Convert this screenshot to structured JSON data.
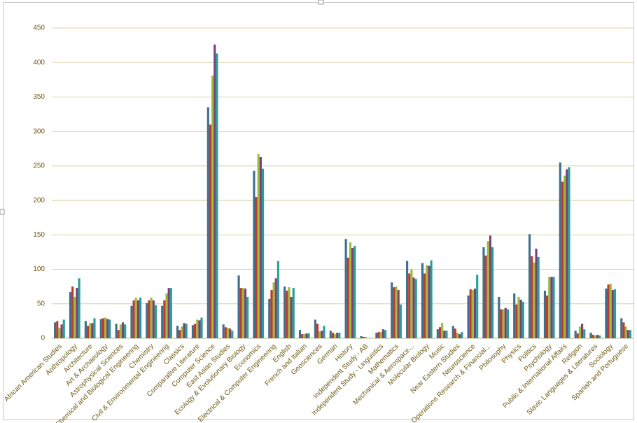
{
  "chart_data": {
    "type": "bar",
    "categories": [
      "African American Studies",
      "Anthropology",
      "Architecture",
      "Art & Archaeology",
      "Astrophysical Sciences",
      "Chemical and Biological Engineering",
      "Chemistry",
      "Civil & Environmental Engineering",
      "Classics",
      "Comparative Literature",
      "Computer Science",
      "East Asian Studies",
      "Ecology & Evolutionary Biology",
      "Economics",
      "Electrical & Computer Engineering",
      "English",
      "French and Italian",
      "Geosciences",
      "German",
      "History",
      "Independent Study - AB",
      "Independent Study - Linguistics",
      "Mathematics",
      "Mechanical & Aerospace...",
      "Molecular Biology",
      "Music",
      "Near Eastern Studies",
      "Neuroscience",
      "Operations Research & Financial...",
      "Philosophy",
      "Physics",
      "Politics",
      "Psychology",
      "Public & International Affairs",
      "Religion",
      "Slavic Languages & Literatures",
      "Sociology",
      "Spanish and Portuguese"
    ],
    "series": [
      {
        "color": "#3f6f8e",
        "values": [
          23,
          67,
          25,
          28,
          21,
          47,
          51,
          47,
          18,
          19,
          335,
          20,
          91,
          243,
          57,
          75,
          12,
          27,
          11,
          144,
          3,
          8,
          81,
          112,
          109,
          13,
          18,
          62,
          132,
          60,
          65,
          151,
          69,
          255,
          11,
          8,
          72,
          29
        ]
      },
      {
        "color": "#c0392b",
        "values": [
          25,
          75,
          18,
          29,
          12,
          55,
          55,
          55,
          12,
          21,
          310,
          16,
          73,
          205,
          70,
          69,
          6,
          21,
          8,
          117,
          2,
          9,
          74,
          94,
          94,
          16,
          14,
          71,
          120,
          42,
          49,
          119,
          62,
          227,
          7,
          5,
          78,
          23
        ]
      },
      {
        "color": "#9bbb3a",
        "values": [
          15,
          60,
          22,
          30,
          20,
          59,
          59,
          65,
          17,
          27,
          381,
          15,
          73,
          267,
          81,
          74,
          6,
          10,
          6,
          139,
          2,
          9,
          75,
          100,
          106,
          22,
          8,
          70,
          141,
          42,
          60,
          110,
          89,
          236,
          17,
          4,
          79,
          17
        ]
      },
      {
        "color": "#7b3f7e",
        "values": [
          20,
          73,
          22,
          28,
          23,
          55,
          55,
          73,
          22,
          26,
          426,
          14,
          72,
          263,
          87,
          60,
          7,
          11,
          8,
          131,
          0,
          13,
          70,
          88,
          105,
          11,
          6,
          72,
          149,
          44,
          56,
          130,
          89,
          245,
          21,
          5,
          70,
          12
        ]
      },
      {
        "color": "#27a096",
        "values": [
          27,
          87,
          29,
          27,
          20,
          59,
          48,
          73,
          21,
          30,
          413,
          11,
          60,
          246,
          112,
          73,
          7,
          18,
          8,
          134,
          0,
          12,
          49,
          86,
          113,
          11,
          9,
          92,
          132,
          42,
          53,
          118,
          89,
          248,
          13,
          4,
          71,
          12
        ]
      }
    ],
    "ylim": [
      0,
      450
    ],
    "yticks": [
      0,
      50,
      100,
      150,
      200,
      250,
      300,
      350,
      400,
      450
    ],
    "grid": true
  }
}
